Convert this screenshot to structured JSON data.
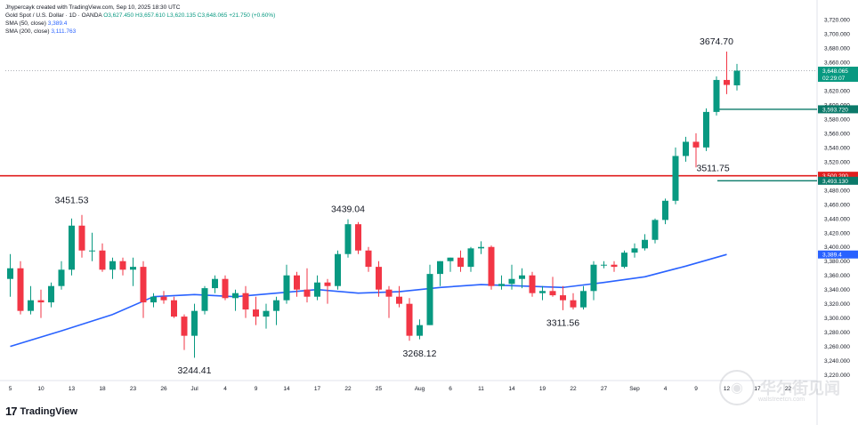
{
  "legend": {
    "creator": "Jhypercayk created with TradingView.com, Sep 10, 2025 18:30 UTC",
    "symbol": "Gold Spot / U.S. Dollar · 1D · OANDA",
    "o": "O3,627.450",
    "h": "H3,657.610",
    "l": "L3,620.135",
    "c": "C3,648.065",
    "chg": "+21.750 (+0.60%)",
    "sma50": "SMA (50, close)",
    "sma50_val": "3,389.4",
    "sma200": "SMA (200, close)",
    "sma200_val": "3,111.763"
  },
  "branding": {
    "logo_mark": "17",
    "logo_text": "TradingView"
  },
  "watermark": {
    "text": "华尔街见闻",
    "url": "wallstreetcn.com"
  },
  "colors": {
    "up": "#089981",
    "down": "#f23645",
    "sma": "#2962ff",
    "hline_red": "#e01e1e",
    "hline_green": "#0b7a6a"
  },
  "chart_data": {
    "type": "candlestick",
    "title": "Gold Spot / U.S. Dollar · 1D · OANDA",
    "y_ticks": [
      3220,
      3240,
      3260,
      3280,
      3300,
      3320,
      3340,
      3360,
      3380,
      3400,
      3420,
      3440,
      3460,
      3480,
      3500,
      3520,
      3540,
      3560,
      3580,
      3600,
      3620,
      3640,
      3660,
      3680,
      3700,
      3720
    ],
    "ylim": [
      3212,
      3730
    ],
    "x_ticks": [
      {
        "i": 0,
        "label": "5"
      },
      {
        "i": 3,
        "label": "10"
      },
      {
        "i": 6,
        "label": "13"
      },
      {
        "i": 9,
        "label": "18"
      },
      {
        "i": 12,
        "label": "23"
      },
      {
        "i": 15,
        "label": "26"
      },
      {
        "i": 18,
        "label": "Jul"
      },
      {
        "i": 21,
        "label": "4"
      },
      {
        "i": 24,
        "label": "9"
      },
      {
        "i": 27,
        "label": "14"
      },
      {
        "i": 30,
        "label": "17"
      },
      {
        "i": 33,
        "label": "22"
      },
      {
        "i": 36,
        "label": "25"
      },
      {
        "i": 40,
        "label": "Aug"
      },
      {
        "i": 43,
        "label": "6"
      },
      {
        "i": 46,
        "label": "11"
      },
      {
        "i": 49,
        "label": "14"
      },
      {
        "i": 52,
        "label": "19"
      },
      {
        "i": 55,
        "label": "22"
      },
      {
        "i": 58,
        "label": "27"
      },
      {
        "i": 61,
        "label": "Sep"
      },
      {
        "i": 64,
        "label": "4"
      },
      {
        "i": 67,
        "label": "9"
      },
      {
        "i": 70,
        "label": "12"
      },
      {
        "i": 73,
        "label": "17"
      },
      {
        "i": 76,
        "label": "22"
      }
    ],
    "candles": [
      {
        "o": 3355,
        "h": 3390,
        "l": 3330,
        "c": 3370
      },
      {
        "o": 3370,
        "h": 3380,
        "l": 3305,
        "c": 3310
      },
      {
        "o": 3310,
        "h": 3345,
        "l": 3305,
        "c": 3325
      },
      {
        "o": 3325,
        "h": 3340,
        "l": 3300,
        "c": 3322
      },
      {
        "o": 3322,
        "h": 3350,
        "l": 3315,
        "c": 3345
      },
      {
        "o": 3345,
        "h": 3380,
        "l": 3340,
        "c": 3368
      },
      {
        "o": 3368,
        "h": 3440,
        "l": 3360,
        "c": 3430
      },
      {
        "o": 3430,
        "h": 3445,
        "l": 3385,
        "c": 3395
      },
      {
        "o": 3395,
        "h": 3420,
        "l": 3380,
        "c": 3395
      },
      {
        "o": 3395,
        "h": 3405,
        "l": 3365,
        "c": 3368
      },
      {
        "o": 3368,
        "h": 3385,
        "l": 3355,
        "c": 3380
      },
      {
        "o": 3380,
        "h": 3385,
        "l": 3360,
        "c": 3368
      },
      {
        "o": 3368,
        "h": 3385,
        "l": 3345,
        "c": 3372
      },
      {
        "o": 3372,
        "h": 3380,
        "l": 3300,
        "c": 3322
      },
      {
        "o": 3322,
        "h": 3335,
        "l": 3315,
        "c": 3330
      },
      {
        "o": 3330,
        "h": 3338,
        "l": 3320,
        "c": 3325
      },
      {
        "o": 3325,
        "h": 3330,
        "l": 3300,
        "c": 3302
      },
      {
        "o": 3302,
        "h": 3305,
        "l": 3255,
        "c": 3275
      },
      {
        "o": 3275,
        "h": 3320,
        "l": 3244,
        "c": 3310
      },
      {
        "o": 3310,
        "h": 3345,
        "l": 3305,
        "c": 3342
      },
      {
        "o": 3342,
        "h": 3360,
        "l": 3335,
        "c": 3355
      },
      {
        "o": 3355,
        "h": 3360,
        "l": 3325,
        "c": 3328
      },
      {
        "o": 3328,
        "h": 3340,
        "l": 3310,
        "c": 3335
      },
      {
        "o": 3335,
        "h": 3345,
        "l": 3300,
        "c": 3312
      },
      {
        "o": 3312,
        "h": 3330,
        "l": 3290,
        "c": 3302
      },
      {
        "o": 3302,
        "h": 3320,
        "l": 3285,
        "c": 3310
      },
      {
        "o": 3310,
        "h": 3330,
        "l": 3290,
        "c": 3325
      },
      {
        "o": 3325,
        "h": 3375,
        "l": 3320,
        "c": 3360
      },
      {
        "o": 3360,
        "h": 3365,
        "l": 3330,
        "c": 3340
      },
      {
        "o": 3340,
        "h": 3370,
        "l": 3322,
        "c": 3330
      },
      {
        "o": 3330,
        "h": 3360,
        "l": 3325,
        "c": 3350
      },
      {
        "o": 3350,
        "h": 3355,
        "l": 3320,
        "c": 3345
      },
      {
        "o": 3345,
        "h": 3395,
        "l": 3340,
        "c": 3390
      },
      {
        "o": 3390,
        "h": 3439,
        "l": 3385,
        "c": 3432
      },
      {
        "o": 3432,
        "h": 3435,
        "l": 3390,
        "c": 3395
      },
      {
        "o": 3395,
        "h": 3400,
        "l": 3365,
        "c": 3372
      },
      {
        "o": 3372,
        "h": 3380,
        "l": 3330,
        "c": 3340
      },
      {
        "o": 3340,
        "h": 3345,
        "l": 3300,
        "c": 3330
      },
      {
        "o": 3330,
        "h": 3345,
        "l": 3315,
        "c": 3320
      },
      {
        "o": 3320,
        "h": 3328,
        "l": 3268,
        "c": 3275
      },
      {
        "o": 3275,
        "h": 3298,
        "l": 3270,
        "c": 3290
      },
      {
        "o": 3290,
        "h": 3375,
        "l": 3290,
        "c": 3362
      },
      {
        "o": 3362,
        "h": 3380,
        "l": 3345,
        "c": 3380
      },
      {
        "o": 3380,
        "h": 3385,
        "l": 3365,
        "c": 3385
      },
      {
        "o": 3385,
        "h": 3395,
        "l": 3365,
        "c": 3372
      },
      {
        "o": 3372,
        "h": 3400,
        "l": 3365,
        "c": 3398
      },
      {
        "o": 3398,
        "h": 3408,
        "l": 3390,
        "c": 3400
      },
      {
        "o": 3400,
        "h": 3402,
        "l": 3340,
        "c": 3345
      },
      {
        "o": 3345,
        "h": 3360,
        "l": 3340,
        "c": 3348
      },
      {
        "o": 3348,
        "h": 3375,
        "l": 3340,
        "c": 3355
      },
      {
        "o": 3355,
        "h": 3370,
        "l": 3342,
        "c": 3360
      },
      {
        "o": 3360,
        "h": 3365,
        "l": 3330,
        "c": 3335
      },
      {
        "o": 3335,
        "h": 3345,
        "l": 3325,
        "c": 3338
      },
      {
        "o": 3338,
        "h": 3358,
        "l": 3330,
        "c": 3332
      },
      {
        "o": 3332,
        "h": 3345,
        "l": 3311,
        "c": 3325
      },
      {
        "o": 3325,
        "h": 3335,
        "l": 3312,
        "c": 3315
      },
      {
        "o": 3315,
        "h": 3345,
        "l": 3312,
        "c": 3338
      },
      {
        "o": 3338,
        "h": 3380,
        "l": 3325,
        "c": 3375
      },
      {
        "o": 3375,
        "h": 3380,
        "l": 3370,
        "c": 3375
      },
      {
        "o": 3375,
        "h": 3380,
        "l": 3365,
        "c": 3372
      },
      {
        "o": 3372,
        "h": 3395,
        "l": 3370,
        "c": 3392
      },
      {
        "o": 3392,
        "h": 3405,
        "l": 3385,
        "c": 3398
      },
      {
        "o": 3398,
        "h": 3418,
        "l": 3395,
        "c": 3410
      },
      {
        "o": 3410,
        "h": 3440,
        "l": 3405,
        "c": 3438
      },
      {
        "o": 3438,
        "h": 3468,
        "l": 3432,
        "c": 3465
      },
      {
        "o": 3465,
        "h": 3540,
        "l": 3460,
        "c": 3528
      },
      {
        "o": 3528,
        "h": 3555,
        "l": 3520,
        "c": 3548
      },
      {
        "o": 3548,
        "h": 3560,
        "l": 3512,
        "c": 3540
      },
      {
        "o": 3540,
        "h": 3595,
        "l": 3535,
        "c": 3590
      },
      {
        "o": 3590,
        "h": 3640,
        "l": 3585,
        "c": 3635
      },
      {
        "o": 3635,
        "h": 3675,
        "l": 3615,
        "c": 3628
      },
      {
        "o": 3627.45,
        "h": 3657.61,
        "l": 3620.135,
        "c": 3648.065
      }
    ],
    "sma50": [
      {
        "i": 0,
        "v": 3260
      },
      {
        "i": 5,
        "v": 3282
      },
      {
        "i": 10,
        "v": 3305
      },
      {
        "i": 14,
        "v": 3330
      },
      {
        "i": 18,
        "v": 3333
      },
      {
        "i": 22,
        "v": 3330
      },
      {
        "i": 26,
        "v": 3335
      },
      {
        "i": 30,
        "v": 3340
      },
      {
        "i": 34,
        "v": 3335
      },
      {
        "i": 38,
        "v": 3337
      },
      {
        "i": 42,
        "v": 3343
      },
      {
        "i": 46,
        "v": 3347
      },
      {
        "i": 50,
        "v": 3345
      },
      {
        "i": 54,
        "v": 3343
      },
      {
        "i": 58,
        "v": 3350
      },
      {
        "i": 62,
        "v": 3358
      },
      {
        "i": 66,
        "v": 3373
      },
      {
        "i": 70,
        "v": 3389.4
      }
    ],
    "annotations": [
      {
        "i": 6,
        "v": 3451.53,
        "label": "3451.53",
        "pos": "above"
      },
      {
        "i": 18,
        "v": 3244.41,
        "label": "3244.41",
        "pos": "below"
      },
      {
        "i": 33,
        "v": 3439.04,
        "label": "3439.04",
        "pos": "above"
      },
      {
        "i": 40,
        "v": 3268.12,
        "label": "3268.12",
        "pos": "below"
      },
      {
        "i": 54,
        "v": 3311.56,
        "label": "3311.56",
        "pos": "below"
      },
      {
        "i": 66,
        "v": 3511.75,
        "label": "3511.75",
        "pos": "right"
      },
      {
        "i": 69,
        "v": 3674.7,
        "label": "3674.70",
        "pos": "above"
      }
    ],
    "hlines": [
      {
        "v": 3500.2,
        "color": "red",
        "label": "3,500.200"
      },
      {
        "v": 3593.72,
        "color": "green",
        "label": "3,593.720"
      },
      {
        "v": 3493.13,
        "color": "green",
        "label": "3,493.130"
      }
    ],
    "price_tags": [
      {
        "v": 3648.065,
        "label": "3,648.065",
        "sub": "02:29:07",
        "color": "#089981"
      },
      {
        "v": 3389.4,
        "label": "3,389.4",
        "color": "#2962ff"
      }
    ],
    "last_close": 3648.065,
    "grid": false,
    "legend": "top-left"
  }
}
